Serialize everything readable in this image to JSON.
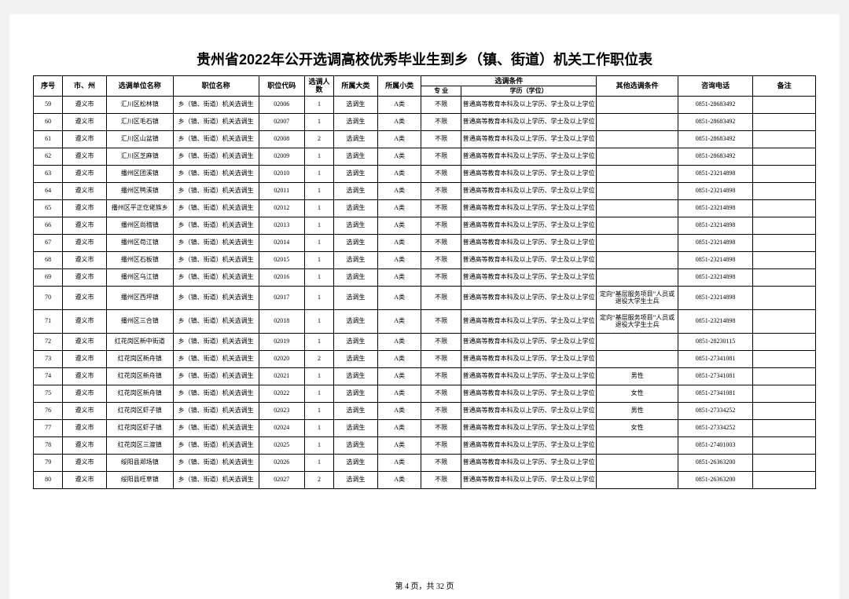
{
  "title": "贵州省2022年公开选调高校优秀毕业生到乡（镇、街道）机关工作职位表",
  "header": {
    "seq": "序号",
    "city": "市、州",
    "unit": "选调单位名称",
    "pos": "职位名称",
    "code": "职位代码",
    "cnt": "选调人数",
    "cat1": "所属大类",
    "cat2": "所属小类",
    "cond": "选调条件",
    "major": "专 业",
    "edu": "学历（学位）",
    "other": "其他选调条件",
    "phone": "咨询电话",
    "note": "备注"
  },
  "common": {
    "city": "遵义市",
    "pos": "乡（镇、街道）机关选调生",
    "cat1": "选调生",
    "cat2": "A类",
    "major": "不限",
    "edu": "普通高等教育本科及以上学历、学士及以上学位"
  },
  "rows": [
    {
      "seq": "59",
      "unit": "汇川区松林镇",
      "code": "02006",
      "cnt": "1",
      "other": "",
      "phone": "0851-28683492"
    },
    {
      "seq": "60",
      "unit": "汇川区毛石镇",
      "code": "02007",
      "cnt": "1",
      "other": "",
      "phone": "0851-28683492"
    },
    {
      "seq": "61",
      "unit": "汇川区山盆镇",
      "code": "02008",
      "cnt": "2",
      "other": "",
      "phone": "0851-28683492"
    },
    {
      "seq": "62",
      "unit": "汇川区芝麻镇",
      "code": "02009",
      "cnt": "1",
      "other": "",
      "phone": "0851-28683492"
    },
    {
      "seq": "63",
      "unit": "播州区团溪镇",
      "code": "02010",
      "cnt": "1",
      "other": "",
      "phone": "0851-23214898"
    },
    {
      "seq": "64",
      "unit": "播州区鸭溪镇",
      "code": "02011",
      "cnt": "1",
      "other": "",
      "phone": "0851-23214898"
    },
    {
      "seq": "65",
      "unit": "播州区平正仡佬族乡",
      "code": "02012",
      "cnt": "1",
      "other": "",
      "phone": "0851-23214898"
    },
    {
      "seq": "66",
      "unit": "播州区尚稽镇",
      "code": "02013",
      "cnt": "1",
      "other": "",
      "phone": "0851-23214898"
    },
    {
      "seq": "67",
      "unit": "播州区苟江镇",
      "code": "02014",
      "cnt": "1",
      "other": "",
      "phone": "0851-23214898"
    },
    {
      "seq": "68",
      "unit": "播州区石板镇",
      "code": "02015",
      "cnt": "1",
      "other": "",
      "phone": "0851-23214898"
    },
    {
      "seq": "69",
      "unit": "播州区乌江镇",
      "code": "02016",
      "cnt": "1",
      "other": "",
      "phone": "0851-23214898"
    },
    {
      "seq": "70",
      "unit": "播州区西坪镇",
      "code": "02017",
      "cnt": "1",
      "other": "定向“基层服务项目”人员或退役大学生士兵",
      "phone": "0851-23214898",
      "tall": true
    },
    {
      "seq": "71",
      "unit": "播州区三合镇",
      "code": "02018",
      "cnt": "1",
      "other": "定向“基层服务项目”人员或退役大学生士兵",
      "phone": "0851-23214898",
      "tall": true
    },
    {
      "seq": "72",
      "unit": "红花岗区新中街道",
      "code": "02019",
      "cnt": "1",
      "other": "",
      "phone": "0851-28230115"
    },
    {
      "seq": "73",
      "unit": "红花岗区新舟镇",
      "code": "02020",
      "cnt": "2",
      "other": "",
      "phone": "0851-27341081"
    },
    {
      "seq": "74",
      "unit": "红花岗区新舟镇",
      "code": "02021",
      "cnt": "1",
      "other": "男性",
      "phone": "0851-27341081"
    },
    {
      "seq": "75",
      "unit": "红花岗区新舟镇",
      "code": "02022",
      "cnt": "1",
      "other": "女性",
      "phone": "0851-27341081"
    },
    {
      "seq": "76",
      "unit": "红花岗区虾子镇",
      "code": "02023",
      "cnt": "1",
      "other": "男性",
      "phone": "0851-27334252"
    },
    {
      "seq": "77",
      "unit": "红花岗区虾子镇",
      "code": "02024",
      "cnt": "1",
      "other": "女性",
      "phone": "0851-27334252"
    },
    {
      "seq": "78",
      "unit": "红花岗区三渡镇",
      "code": "02025",
      "cnt": "1",
      "other": "",
      "phone": "0851-27401003"
    },
    {
      "seq": "79",
      "unit": "绥阳县郑场镇",
      "code": "02026",
      "cnt": "1",
      "other": "",
      "phone": "0851-26363200"
    },
    {
      "seq": "80",
      "unit": "绥阳县旺草镇",
      "code": "02027",
      "cnt": "2",
      "other": "",
      "phone": "0851-26363200"
    }
  ],
  "footer": "第 4 页，共 32 页"
}
